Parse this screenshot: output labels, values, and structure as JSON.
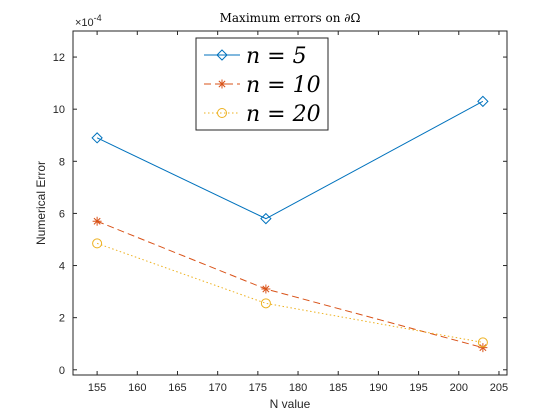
{
  "chart_data": {
    "type": "line",
    "title": "Maximum errors on ∂Ω",
    "xlabel": "N value",
    "ylabel": "Numerical Error",
    "y_exponent_label": "×10",
    "y_exponent_power": "-4",
    "y_scale": 0.0001,
    "xlim": [
      152,
      206
    ],
    "ylim": [
      -0.2,
      13
    ],
    "xticks": [
      155,
      160,
      165,
      170,
      175,
      180,
      185,
      190,
      195,
      200,
      205
    ],
    "yticks": [
      0,
      2,
      4,
      6,
      8,
      10,
      12
    ],
    "grid": false,
    "legend_position": "top-left",
    "series": [
      {
        "name": "n = 5",
        "x": [
          155,
          176,
          203
        ],
        "values": [
          8.9,
          5.8,
          10.3
        ],
        "color": "#0072BD",
        "marker": "diamond",
        "line_style": "solid"
      },
      {
        "name": "n = 10",
        "x": [
          155,
          176,
          203
        ],
        "values": [
          5.7,
          3.1,
          0.85
        ],
        "color": "#D95319",
        "marker": "asterisk",
        "line_style": "dashed"
      },
      {
        "name": "n = 20",
        "x": [
          155,
          176,
          203
        ],
        "values": [
          4.85,
          2.55,
          1.05
        ],
        "color": "#EDB120",
        "marker": "circle",
        "line_style": "dotted"
      }
    ]
  }
}
